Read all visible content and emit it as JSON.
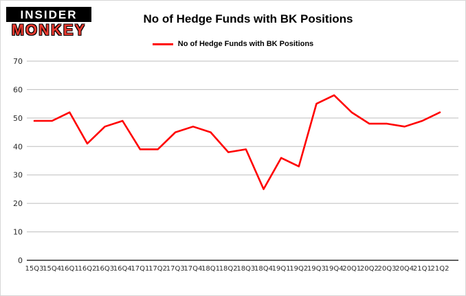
{
  "logo": {
    "line1": "INSIDER",
    "line2": "MONKEY"
  },
  "header": {
    "title": "No of Hedge Funds with BK Positions"
  },
  "legend": {
    "label": "No of Hedge Funds with BK Positions",
    "color": "#ff0000"
  },
  "chart_data": {
    "type": "line",
    "title": "No of Hedge Funds with BK Positions",
    "categories": [
      "15Q3",
      "15Q4",
      "16Q1",
      "16Q2",
      "16Q3",
      "16Q4",
      "17Q1",
      "17Q2",
      "17Q3",
      "17Q4",
      "18Q1",
      "18Q2",
      "18Q3",
      "18Q4",
      "19Q1",
      "19Q2",
      "19Q3",
      "19Q4",
      "20Q1",
      "20Q2",
      "20Q3",
      "20Q4",
      "21Q1",
      "21Q2"
    ],
    "series": [
      {
        "name": "No of Hedge Funds with BK Positions",
        "color": "#ff0000",
        "values": [
          49,
          49,
          52,
          41,
          47,
          49,
          39,
          39,
          45,
          47,
          45,
          38,
          39,
          25,
          36,
          33,
          55,
          58,
          52,
          48,
          48,
          47,
          49,
          52
        ]
      }
    ],
    "xlabel": "",
    "ylabel": "",
    "ylim": [
      0,
      70
    ],
    "yticks": [
      0,
      10,
      20,
      30,
      40,
      50,
      60,
      70
    ],
    "grid": true,
    "grid_color": "#bdbdbd",
    "axis_color": "#000000",
    "legend_position": "top"
  }
}
